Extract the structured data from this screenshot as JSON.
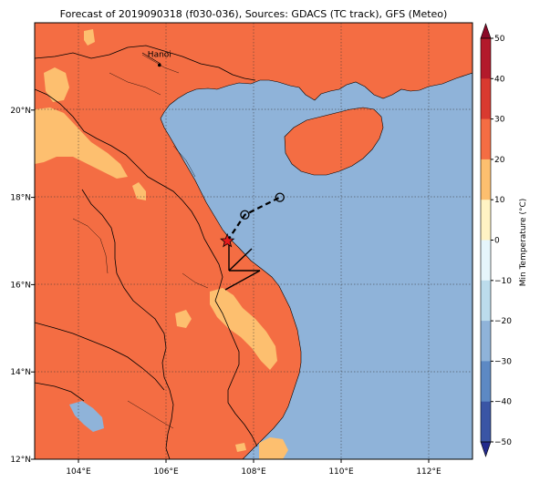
{
  "title": "Forecast of 2019090318 (f030-036), Sources: GDACS (TC track), GFS (Meteo)",
  "map": {
    "lon_range": [
      103,
      113
    ],
    "lat_range": [
      12,
      22
    ],
    "lon_ticks": [
      104,
      106,
      108,
      110,
      112
    ],
    "lat_ticks": [
      12,
      14,
      16,
      18,
      20
    ],
    "lon_tick_labels": [
      "104°E",
      "106°E",
      "108°E",
      "110°E",
      "112°E"
    ],
    "lat_tick_labels": [
      "12°N",
      "14°N",
      "16°N",
      "18°N",
      "20°N"
    ],
    "grid": true,
    "city": {
      "name": "Hanoi",
      "lon": 105.85,
      "lat": 21.03
    }
  },
  "storm": {
    "position": {
      "lon": 107.4,
      "lat": 17.0
    },
    "track": [
      {
        "lon": 107.4,
        "lat": 17.0
      },
      {
        "lon": 107.8,
        "lat": 17.6
      },
      {
        "lon": 108.6,
        "lat": 18.0
      }
    ]
  },
  "colorbar": {
    "label": "Min Temperature (°C)",
    "ticks": [
      "50",
      "40",
      "30",
      "20",
      "10",
      "0",
      "−10",
      "−20",
      "−30",
      "−40",
      "−50"
    ],
    "band_colors": [
      "#8a0a28",
      "#b31a2b",
      "#d93a30",
      "#f46d43",
      "#fdbf6f",
      "#fff3c4",
      "#e6f5fb",
      "#bcdcec",
      "#8fb3d9",
      "#5d89c4",
      "#3a55a5",
      "#222a8c"
    ],
    "land_color": "#f46d43",
    "warm_land_color": "#fdbf6f",
    "sea_color": "#8fb3d9"
  }
}
